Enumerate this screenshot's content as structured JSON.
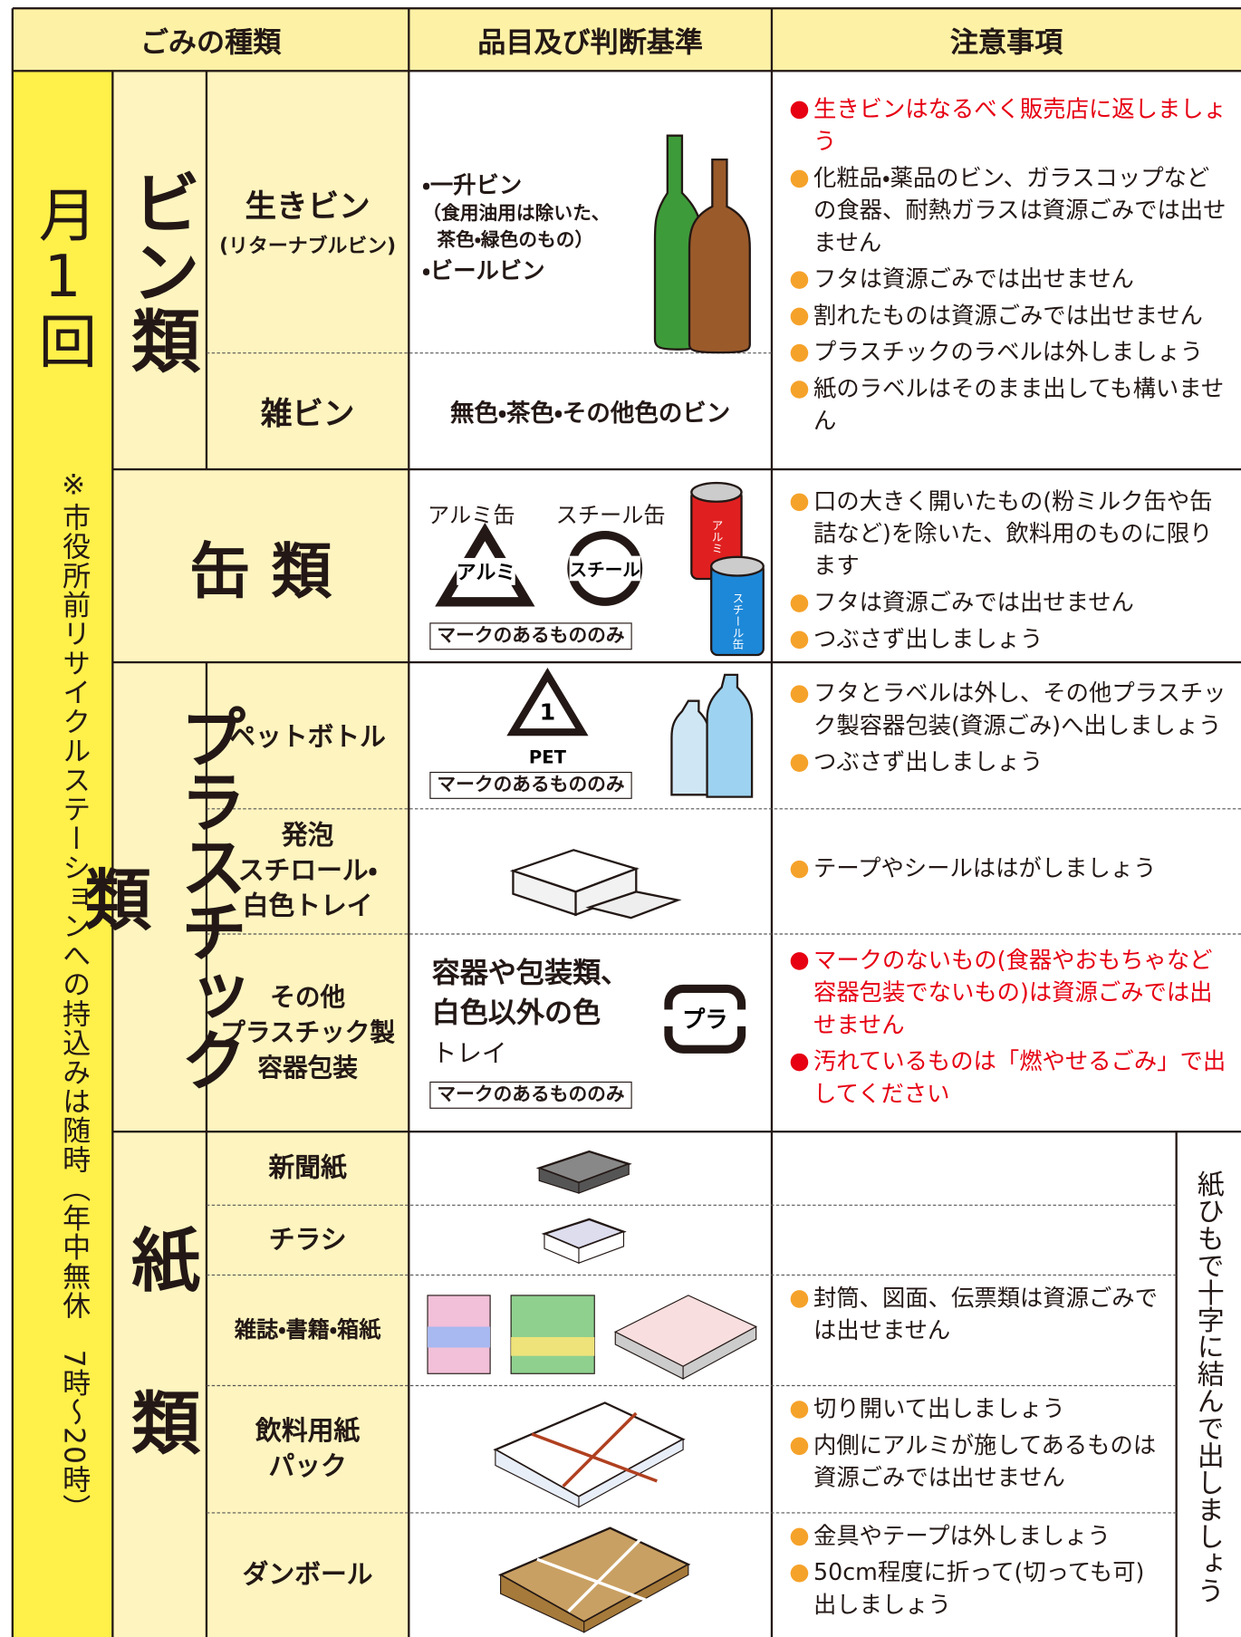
{
  "header": {
    "columns": [
      "ごみの種類",
      "品目及び判断基準",
      "注意事項"
    ]
  },
  "schedule": {
    "frequency": "月1回",
    "note": "※市役所前リサイクルステーションへの持込みは随時（年中無休　7時～20時）"
  },
  "bottles": {
    "name": "ビン類",
    "returnable": {
      "name": "生きビン",
      "sub": "(リターナブルビン)",
      "items": [
        "・一升ビン",
        "（食用油用は除いた、",
        "茶色・緑色のもの）",
        "・ビールビン"
      ]
    },
    "misc": {
      "name": "雑ビン",
      "item": "無色・茶色・その他色のビン"
    },
    "alerts": [
      "生きビンはなるべく販売店に返しましょう"
    ],
    "notes": [
      "化粧品・薬品のビン、ガラスコップなどの食器、耐熱ガラスは資源ごみでは出せません",
      "フタは資源ごみでは出せません",
      "割れたものは資源ごみでは出せません",
      "プラスチックのラベルは外しましょう",
      "紙のラベルはそのまま出しても構いません"
    ]
  },
  "cans": {
    "name": "缶 類",
    "marks": [
      "アルミ缶",
      "スチール缶"
    ],
    "symbols": [
      "アルミ",
      "スチール"
    ],
    "can_labels": [
      "アルミ",
      "スチール缶"
    ],
    "mark_note": "マークのあるもののみ",
    "notes": [
      "口の大きく開いたもの(粉ミルク缶や缶詰など)を除いた、飲料用のものに限ります",
      "フタは資源ごみでは出せません",
      "つぶさず出しましょう"
    ]
  },
  "plastics": {
    "name": "プラスチック類",
    "pet": {
      "name": "ペットボトル",
      "symbol": "1",
      "symbol_label": "PET",
      "mark_note": "マークのあるもののみ",
      "notes": [
        "フタとラベルは外し、その他プラスチック製容器包装(資源ごみ)へ出しましょう",
        "つぶさず出しましょう"
      ]
    },
    "foam": {
      "name": [
        "発泡",
        "スチロール・",
        "白色トレイ"
      ],
      "notes": [
        "テープやシールははがしましょう"
      ]
    },
    "other": {
      "name": [
        "その他",
        "プラスチック製",
        "容器包装"
      ],
      "items": [
        "容器や包装類、",
        "白色以外の色",
        "トレイ"
      ],
      "symbol": "プラ",
      "mark_note": "マークのあるもののみ",
      "alerts": [
        "マークのないもの(食器やおもちゃなど容器包装でないもの)は資源ごみでは出せません",
        "汚れているものは「燃やせるごみ」で出してください"
      ]
    }
  },
  "paper": {
    "name": "紙類",
    "rows": [
      {
        "name": [
          "新聞紙"
        ],
        "notes": []
      },
      {
        "name": [
          "チラシ"
        ],
        "notes": []
      },
      {
        "name": [
          "雑誌・書籍・箱紙"
        ],
        "notes": [
          "封筒、図面、伝票類は資源ごみでは出せません"
        ]
      },
      {
        "name": [
          "飲料用紙",
          "パック"
        ],
        "notes": [
          "切り開いて出しましょう",
          "内側にアルミが施してあるものは資源ごみでは出せません"
        ]
      },
      {
        "name": [
          "ダンボール"
        ],
        "notes": [
          "金具やテープは外しましょう",
          "50cm程度に折って(切っても可)出しましょう"
        ]
      }
    ],
    "tie_note": "紙ひもで十字に結んで出しましょう"
  }
}
